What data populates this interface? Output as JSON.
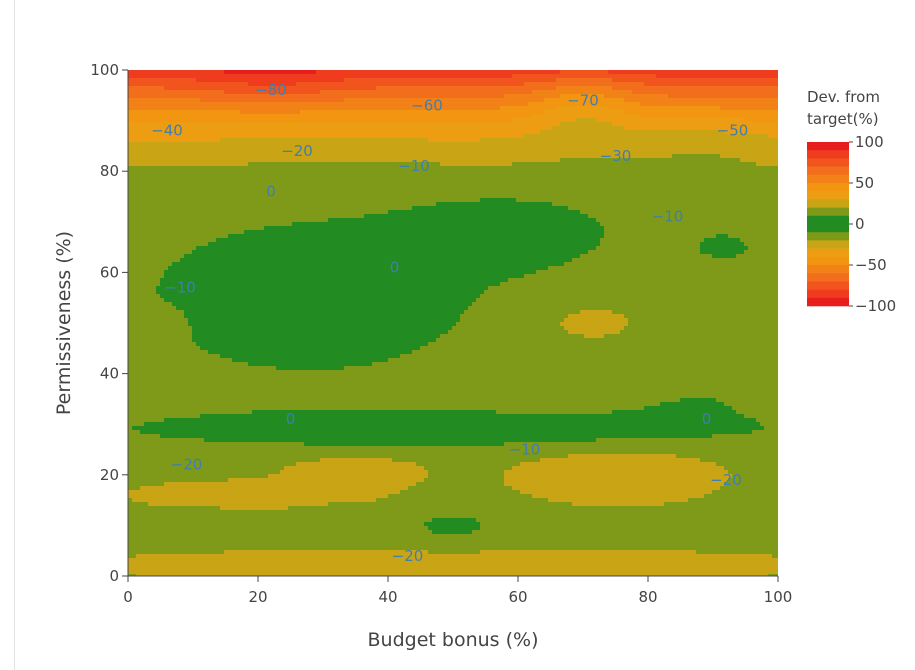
{
  "chart_data": {
    "type": "contour",
    "xlabel": "Budget bonus (%)",
    "ylabel": "Permissiveness (%)",
    "xlim": [
      0,
      100
    ],
    "ylim": [
      0,
      100
    ],
    "x_ticks": [
      "0",
      "20",
      "40",
      "60",
      "80",
      "100"
    ],
    "y_ticks": [
      "0",
      "20",
      "40",
      "60",
      "80",
      "100"
    ],
    "colorbar": {
      "title_lines": [
        "Dev. from",
        "target(%)"
      ],
      "ticks": [
        "100",
        "50",
        "0",
        "−50",
        "−100"
      ],
      "range": [
        -100,
        100
      ],
      "step": 10
    },
    "contour_labels": [
      {
        "text": "−80",
        "x": 22,
        "y": 96
      },
      {
        "text": "−60",
        "x": 46,
        "y": 93
      },
      {
        "text": "−70",
        "x": 70,
        "y": 94
      },
      {
        "text": "−40",
        "x": 6,
        "y": 88
      },
      {
        "text": "−50",
        "x": 93,
        "y": 88
      },
      {
        "text": "−20",
        "x": 26,
        "y": 84
      },
      {
        "text": "−10",
        "x": 44,
        "y": 81
      },
      {
        "text": "−30",
        "x": 75,
        "y": 83
      },
      {
        "text": "0",
        "x": 22,
        "y": 76
      },
      {
        "text": "−10",
        "x": 83,
        "y": 71
      },
      {
        "text": "0",
        "x": 41,
        "y": 61
      },
      {
        "text": "−10",
        "x": 8,
        "y": 57
      },
      {
        "text": "0",
        "x": 25,
        "y": 31
      },
      {
        "text": "0",
        "x": 89,
        "y": 31
      },
      {
        "text": "−10",
        "x": 61,
        "y": 25
      },
      {
        "text": "−20",
        "x": 9,
        "y": 22
      },
      {
        "text": "−20",
        "x": 92,
        "y": 19
      },
      {
        "text": "−20",
        "x": 43,
        "y": 4
      }
    ]
  }
}
